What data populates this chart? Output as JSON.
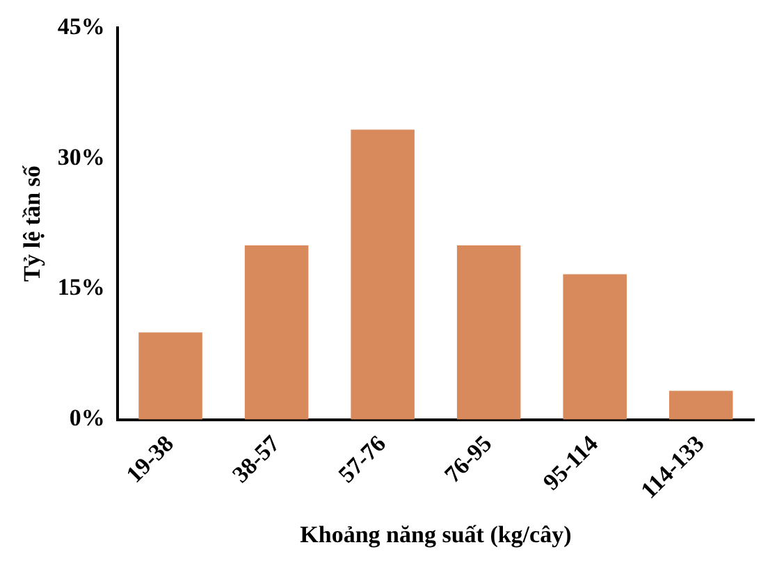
{
  "chart_data": {
    "type": "bar",
    "xlabel": "Khoảng năng suất (kg/cây)",
    "ylabel": "Tỷ lệ tần số",
    "categories": [
      "19-38",
      "38-57",
      "57-76",
      "76-95",
      "95-114",
      "114-133"
    ],
    "values": [
      10,
      20,
      33.3,
      20,
      16.7,
      3.3
    ],
    "color": "#d98a5c",
    "ylim": [
      0,
      45
    ],
    "yticks": [
      {
        "value": 0,
        "label": "0%"
      },
      {
        "value": 15,
        "label": "15%"
      },
      {
        "value": 30,
        "label": "30%"
      },
      {
        "value": 45,
        "label": "45%"
      }
    ],
    "grid": false,
    "legend": false
  }
}
